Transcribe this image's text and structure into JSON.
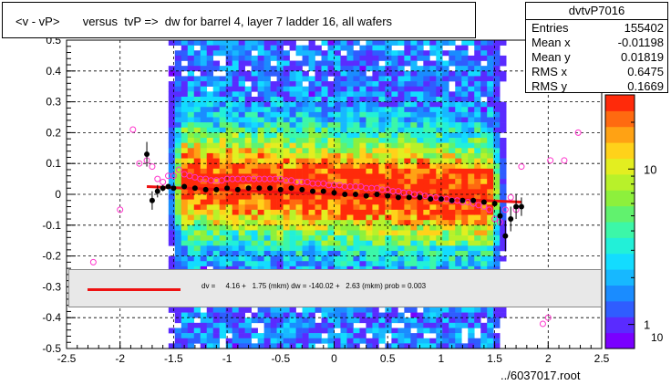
{
  "title": "<v - vP>       versus  tvP =>  dw for barrel 4, layer 7 ladder 16, all wafers",
  "stats": {
    "name": "dvtvP7016",
    "rows": [
      {
        "key": "Entries",
        "value": "155402"
      },
      {
        "key": "Mean x",
        "value": "-0.01198"
      },
      {
        "key": "Mean y",
        "value": "0.01819"
      },
      {
        "key": "RMS x",
        "value": "0.6475"
      },
      {
        "key": "RMS y",
        "value": "0.1669"
      }
    ]
  },
  "fit_text": "dv =     4.16 +   1.75 (mkm) dw = -140.02 +   2.63 (mkm) prob = 0.003",
  "footer": "../6037017.root",
  "colors": {
    "fit_line": "#ee1111",
    "profile_black": "#000000",
    "profile_magenta": "#ff33cc"
  },
  "chart_data": {
    "type": "heatmap",
    "xlim": [
      -2.5,
      2.5
    ],
    "ylim": [
      -0.5,
      0.5
    ],
    "x_ticks": [
      "-2.5",
      "-2",
      "-1.5",
      "-1",
      "-0.5",
      "0",
      "0.5",
      "1",
      "1.5",
      "2",
      "2.5"
    ],
    "y_ticks": [
      "-0.5",
      "-0.4",
      "-0.3",
      "-0.2",
      "-0.1",
      "0",
      "0.1",
      "0.2",
      "0.3",
      "0.4",
      "0.5"
    ],
    "y_tick_values": [
      -0.5,
      -0.4,
      -0.3,
      -0.2,
      -0.1,
      0,
      0.1,
      0.2,
      0.3,
      0.4,
      0.5
    ],
    "x_tick_values": [
      -2.5,
      -2,
      -1.5,
      -1,
      -0.5,
      0,
      0.5,
      1,
      1.5,
      2,
      2.5
    ],
    "grid": true,
    "colorbar_labels": [
      "1",
      "10"
    ],
    "colorbar_label_values": [
      1,
      10
    ],
    "colorbar_range": [
      0.7,
      30
    ],
    "colorbar_top_label": "10",
    "fit_line": {
      "x": [
        -1.75,
        1.75
      ],
      "y": [
        0.025,
        -0.025
      ]
    },
    "profile_black": {
      "x": [
        -1.75,
        -1.7,
        -1.65,
        -1.6,
        -1.55,
        -1.5,
        -1.4,
        -1.3,
        -1.2,
        -1.1,
        -1.0,
        -0.9,
        -0.8,
        -0.7,
        -0.6,
        -0.5,
        -0.4,
        -0.3,
        -0.2,
        -0.1,
        0.0,
        0.1,
        0.2,
        0.3,
        0.4,
        0.5,
        0.6,
        0.7,
        0.8,
        0.9,
        1.0,
        1.1,
        1.2,
        1.3,
        1.4,
        1.5,
        1.55,
        1.6,
        1.65,
        1.7,
        1.75
      ],
      "y": [
        0.13,
        -0.02,
        0.01,
        0.02,
        0.025,
        0.02,
        0.025,
        0.02,
        0.015,
        0.015,
        0.02,
        0.015,
        0.02,
        0.02,
        0.02,
        0.015,
        0.02,
        0.015,
        0.01,
        0.01,
        0.005,
        0.0,
        0.0,
        -0.005,
        0.0,
        -0.005,
        -0.01,
        -0.01,
        -0.01,
        -0.015,
        -0.015,
        -0.02,
        -0.02,
        -0.02,
        -0.025,
        -0.03,
        -0.07,
        -0.135,
        -0.08,
        -0.04,
        -0.04
      ],
      "err": [
        0.04,
        0.03,
        0.02,
        0.01,
        0.005,
        0.005,
        0.003,
        0.003,
        0.003,
        0.003,
        0.003,
        0.003,
        0.003,
        0.003,
        0.003,
        0.003,
        0.003,
        0.003,
        0.003,
        0.003,
        0.003,
        0.003,
        0.003,
        0.003,
        0.003,
        0.003,
        0.003,
        0.003,
        0.003,
        0.003,
        0.003,
        0.003,
        0.003,
        0.003,
        0.004,
        0.01,
        0.03,
        0.05,
        0.04,
        0.04,
        0.03
      ]
    },
    "profile_magenta": {
      "x": [
        -2.25,
        -2.0,
        -1.88,
        -1.82,
        -1.75,
        -1.7,
        -1.65,
        -1.6,
        -1.55,
        -1.5,
        -1.45,
        -1.4,
        -1.35,
        -1.3,
        -1.25,
        -1.2,
        -1.15,
        -1.1,
        -1.05,
        -1.0,
        -0.95,
        -0.9,
        -0.85,
        -0.8,
        -0.75,
        -0.7,
        -0.65,
        -0.6,
        -0.55,
        -0.5,
        -0.45,
        -0.4,
        -0.35,
        -0.3,
        -0.25,
        -0.2,
        -0.15,
        -0.1,
        -0.05,
        0.0,
        0.05,
        0.1,
        0.15,
        0.2,
        0.25,
        0.3,
        0.35,
        0.4,
        0.45,
        0.5,
        0.55,
        0.6,
        0.65,
        0.7,
        0.75,
        0.8,
        0.85,
        0.9,
        0.95,
        1.0,
        1.05,
        1.1,
        1.15,
        1.2,
        1.25,
        1.3,
        1.35,
        1.4,
        1.45,
        1.5,
        1.55,
        1.6,
        1.65,
        1.7,
        1.75,
        1.95,
        2.0,
        2.02,
        2.15,
        2.28
      ],
      "y": [
        -0.22,
        -0.05,
        0.21,
        0.1,
        0.11,
        0.09,
        0.05,
        0.04,
        0.06,
        0.06,
        0.08,
        0.065,
        0.06,
        0.055,
        0.05,
        0.05,
        0.045,
        0.045,
        0.045,
        0.05,
        0.05,
        0.05,
        0.05,
        0.05,
        0.05,
        0.05,
        0.05,
        0.05,
        0.05,
        0.05,
        0.045,
        0.045,
        0.04,
        0.04,
        0.04,
        0.035,
        0.035,
        0.035,
        0.03,
        0.03,
        0.03,
        0.025,
        0.025,
        0.025,
        0.025,
        0.02,
        0.02,
        0.02,
        0.015,
        0.015,
        0.01,
        0.01,
        0.005,
        0.005,
        0.0,
        0.0,
        -0.005,
        -0.01,
        -0.01,
        -0.015,
        -0.015,
        -0.02,
        -0.02,
        -0.025,
        -0.025,
        -0.03,
        -0.035,
        -0.04,
        -0.05,
        -0.08,
        -0.09,
        -0.05,
        -0.01,
        -0.05,
        0.09,
        -0.42,
        -0.4,
        0.11,
        0.11,
        0.2
      ]
    }
  }
}
